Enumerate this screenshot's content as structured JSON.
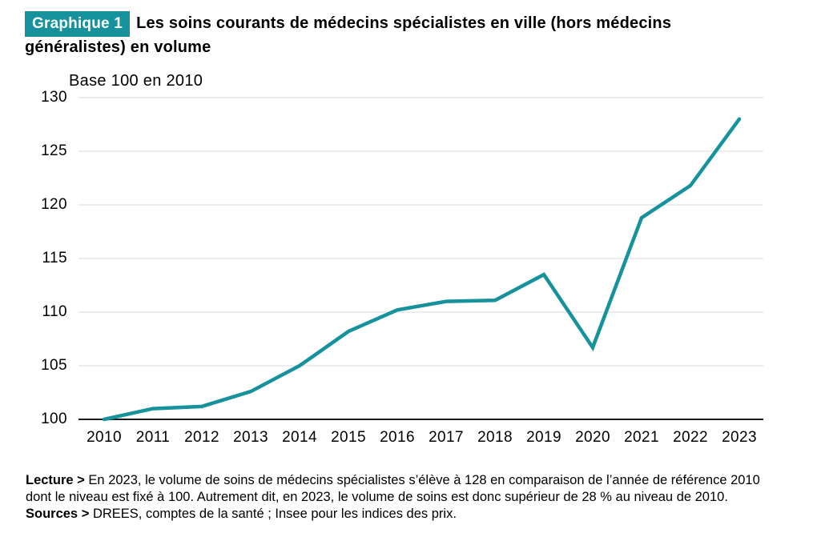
{
  "header": {
    "badge": "Graphique 1",
    "title_line1": "Les soins courants de médecins spécialistes en ville (hors médecins",
    "title_line2": "généralistes) en volume"
  },
  "chart": {
    "unit_label": "Base 100 en 2010"
  },
  "chart_data": {
    "type": "line",
    "title": "Les soins courants de médecins spécialistes en ville (hors médecins généralistes) en volume",
    "subtitle": "Base 100 en 2010",
    "categories": [
      "2010",
      "2011",
      "2012",
      "2013",
      "2014",
      "2015",
      "2016",
      "2017",
      "2018",
      "2019",
      "2020",
      "2021",
      "2022",
      "2023"
    ],
    "series": [
      {
        "name": "Soins courants de médecins spécialistes en ville (hors médecins généralistes), en volume, base 100 en 2010",
        "values": [
          100,
          101,
          101.2,
          102.6,
          105,
          108.2,
          110.2,
          111,
          111.1,
          113.5,
          106.7,
          118.8,
          121.8,
          128
        ]
      }
    ],
    "ylim": [
      100,
      130
    ],
    "yticks": [
      100,
      105,
      110,
      115,
      120,
      125,
      130
    ],
    "grid": true,
    "legend_position": "none",
    "line_color": "#15929C",
    "gridline_color": "#D8D8D8",
    "axis_color": "#1A1A1A"
  },
  "notes": {
    "lecture_label": "Lecture >",
    "lecture_line1": "En 2023, le volume de soins de médecins spécialistes s’élève à 128 en comparaison de l’année de référence 2010",
    "lecture_line2": "dont le niveau est fixé à 100. Autrement dit, en 2023, le volume de soins est donc supérieur de 28 % au niveau de 2010.",
    "sources_label": "Sources >",
    "sources_text": "DREES, comptes de la santé ; Insee pour les indices des prix."
  }
}
